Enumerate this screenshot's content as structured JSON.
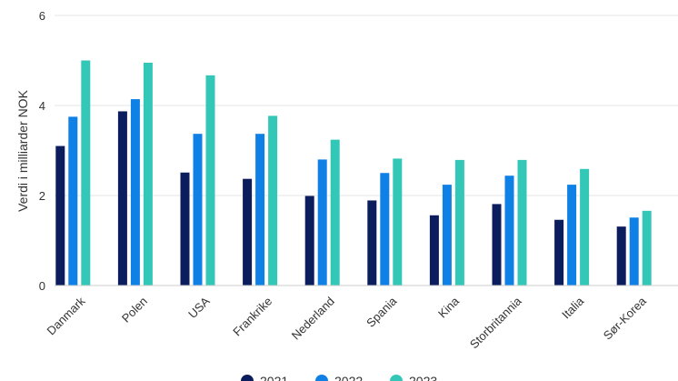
{
  "chart_data": {
    "type": "bar",
    "title": "",
    "xlabel": "",
    "ylabel": "Verdi i milliarder NOK",
    "ylim": [
      0,
      6
    ],
    "yticks": [
      0,
      2,
      4,
      6
    ],
    "grid": true,
    "legend_position": "bottom",
    "categories": [
      "Danmark",
      "Polen",
      "USA",
      "Frankrike",
      "Nederland",
      "Spania",
      "Kina",
      "Storbritannia",
      "Italia",
      "Sør-Korea"
    ],
    "series": [
      {
        "name": "2021",
        "color": "#0b1d5c",
        "values": [
          3.1,
          3.87,
          2.51,
          2.37,
          1.99,
          1.89,
          1.56,
          1.81,
          1.46,
          1.31
        ]
      },
      {
        "name": "2022",
        "color": "#0e80e6",
        "values": [
          3.75,
          4.14,
          3.37,
          3.37,
          2.8,
          2.5,
          2.24,
          2.44,
          2.24,
          1.51
        ]
      },
      {
        "name": "2023",
        "color": "#33c7b8",
        "values": [
          5.0,
          4.95,
          4.67,
          3.77,
          3.24,
          2.82,
          2.79,
          2.79,
          2.59,
          1.66
        ]
      }
    ]
  }
}
